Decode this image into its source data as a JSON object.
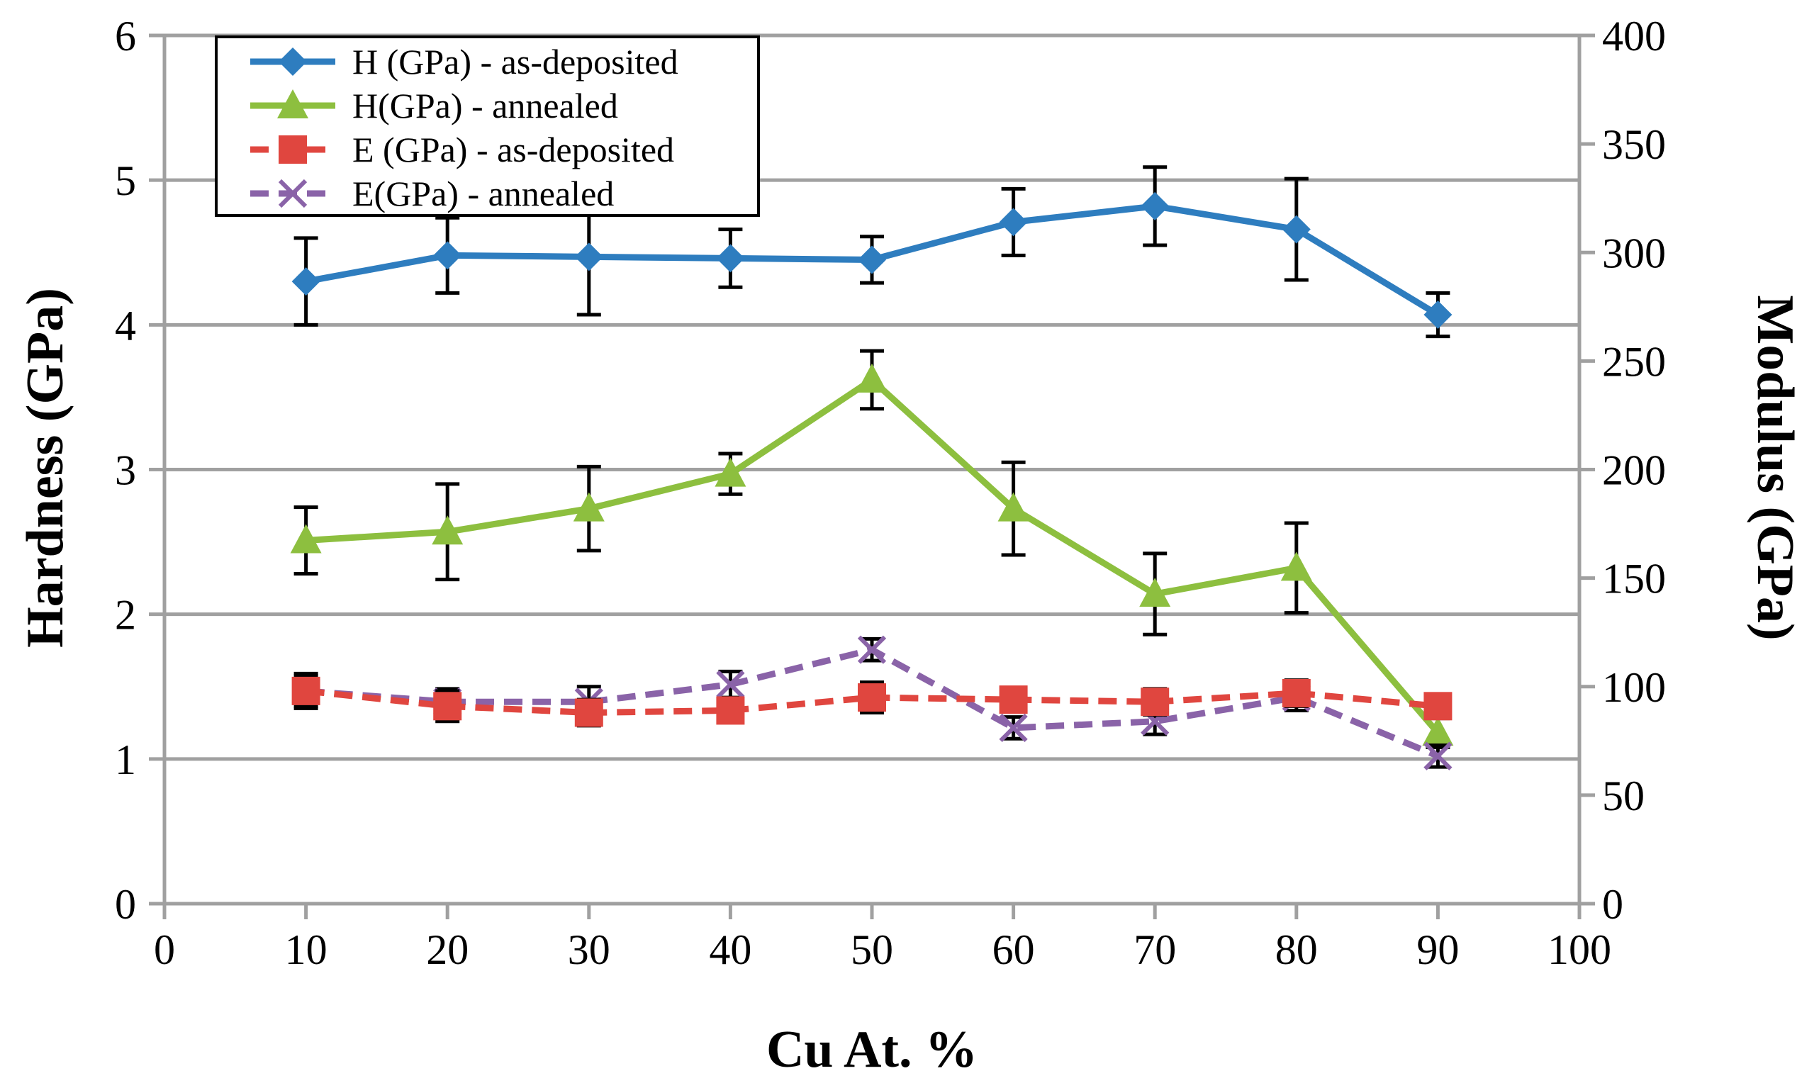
{
  "chart_data": {
    "type": "line",
    "title": "",
    "xlabel": "Cu At. %",
    "ylabel": "Hardness (GPa)",
    "y2label": "Modulus (GPa)",
    "xlim": [
      0,
      100
    ],
    "ylim": [
      0,
      6
    ],
    "y2lim": [
      0,
      400
    ],
    "xticks": [
      0,
      10,
      20,
      30,
      40,
      50,
      60,
      70,
      80,
      90,
      100
    ],
    "yticks": [
      0,
      1,
      2,
      3,
      4,
      5,
      6
    ],
    "y2ticks": [
      0,
      50,
      100,
      150,
      200,
      250,
      300,
      350,
      400
    ],
    "grid": "horizontal",
    "legend_position": "top-left",
    "x": [
      10,
      20,
      30,
      40,
      50,
      60,
      70,
      80,
      90
    ],
    "series": [
      {
        "name": "H (GPa) - as-deposited",
        "axis": "left",
        "color": "#2E7DBF",
        "marker": "diamond",
        "dash": "solid",
        "values": [
          4.3,
          4.48,
          4.47,
          4.46,
          4.45,
          4.71,
          4.82,
          4.66,
          4.07
        ],
        "errors": [
          0.3,
          0.26,
          0.4,
          0.2,
          0.16,
          0.23,
          0.27,
          0.35,
          0.15
        ]
      },
      {
        "name": "H(GPa) - annealed",
        "axis": "left",
        "color": "#8DBF3F",
        "marker": "triangle",
        "dash": "solid",
        "values": [
          2.51,
          2.57,
          2.73,
          2.97,
          3.62,
          2.73,
          2.14,
          2.32,
          1.18
        ],
        "errors": [
          0.23,
          0.33,
          0.29,
          0.14,
          0.2,
          0.32,
          0.28,
          0.31,
          0.1
        ]
      },
      {
        "name": "E (GPa) - as-deposited",
        "axis": "right",
        "color": "#E0463F",
        "marker": "square",
        "dash": "dashed",
        "values": [
          98,
          91,
          88,
          89,
          95,
          94,
          93,
          97,
          91
        ],
        "errors": [
          8,
          7,
          6,
          5,
          7,
          5,
          6,
          6,
          5
        ]
      },
      {
        "name": "E(GPa) - annealed",
        "axis": "right",
        "color": "#8A63A8",
        "marker": "x",
        "dash": "dashed",
        "values": [
          98,
          93,
          93,
          101,
          117,
          81,
          84,
          95,
          68
        ],
        "errors": [
          7,
          6,
          7,
          6,
          5,
          5,
          6,
          6,
          5
        ]
      }
    ]
  }
}
